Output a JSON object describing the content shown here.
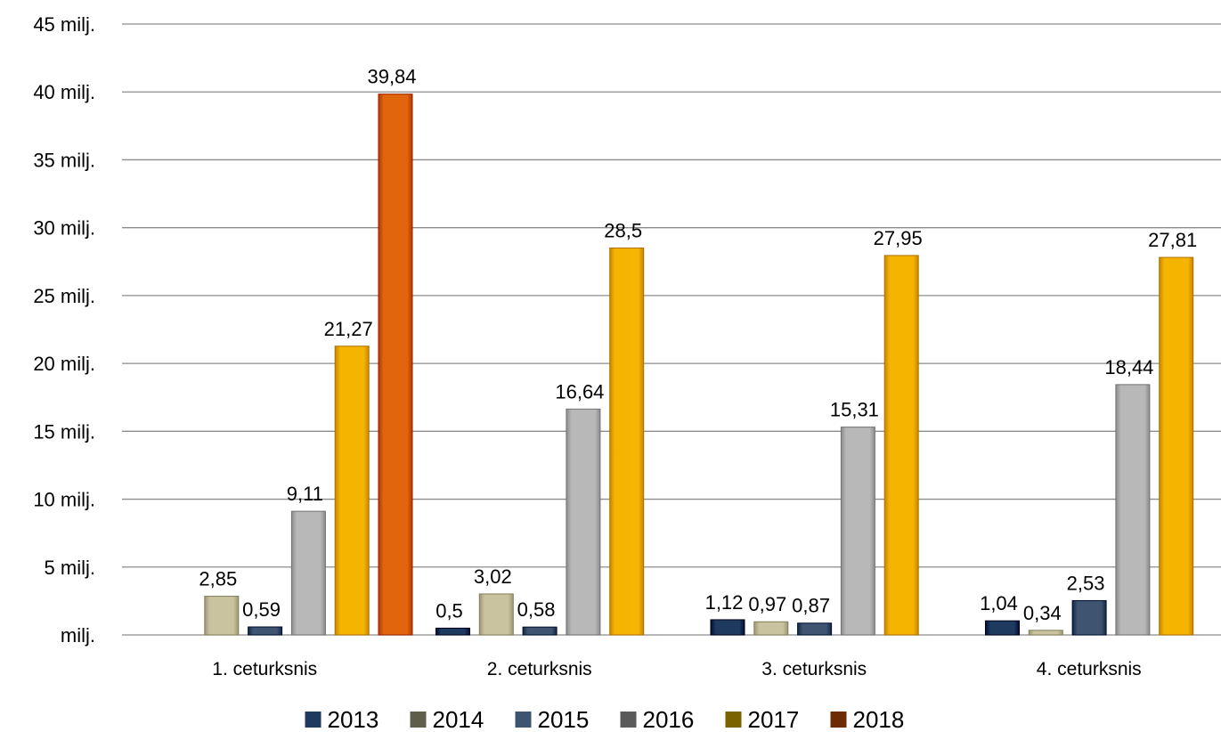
{
  "chart_data": {
    "type": "bar",
    "categories": [
      "1. ceturksnis",
      "2. ceturksnis",
      "3. ceturksnis",
      "4. ceturksnis"
    ],
    "series": [
      {
        "name": "2013",
        "color": "#1f3a5f",
        "values": [
          null,
          0.5,
          1.12,
          1.04
        ],
        "labels": [
          null,
          "0,5",
          "1,12",
          "1,04"
        ]
      },
      {
        "name": "2014",
        "color": "#c9c3a0",
        "values": [
          2.85,
          3.02,
          0.97,
          0.34
        ],
        "labels": [
          "2,85",
          "3,02",
          "0,97",
          "0,34"
        ]
      },
      {
        "name": "2015",
        "color": "#3f5470",
        "values": [
          0.59,
          0.58,
          0.87,
          2.53
        ],
        "labels": [
          "0,59",
          "0,58",
          "0,87",
          "2,53"
        ]
      },
      {
        "name": "2016",
        "color": "#b8b8b8",
        "values": [
          9.11,
          16.64,
          15.31,
          18.44
        ],
        "labels": [
          "9,11",
          "16,64",
          "15,31",
          "18,44"
        ]
      },
      {
        "name": "2017",
        "color": "#f5b400",
        "values": [
          21.27,
          28.5,
          27.95,
          27.81
        ],
        "labels": [
          "21,27",
          "28,5",
          "27,95",
          "27,81"
        ]
      },
      {
        "name": "2018",
        "color": "#e0650c",
        "values": [
          39.84,
          null,
          null,
          null
        ],
        "labels": [
          "39,84",
          null,
          null,
          null
        ]
      }
    ],
    "legend_colors": {
      "2013": "#1f3a5f",
      "2014": "#5e5e4a",
      "2015": "#3f5470",
      "2016": "#5a5a5a",
      "2017": "#7a6200",
      "2018": "#6e2a00"
    },
    "ylim": [
      0,
      45
    ],
    "yticks": [
      0,
      5,
      10,
      15,
      20,
      25,
      30,
      35,
      40,
      45
    ],
    "ytick_labels": [
      "milj.",
      "5 milj.",
      "10 milj.",
      "15 milj.",
      "20 milj.",
      "25 milj.",
      "30 milj.",
      "35 milj.",
      "40 milj.",
      "45 milj."
    ],
    "grid": true,
    "legend_position": "bottom",
    "title": "",
    "xlabel": "",
    "ylabel": ""
  }
}
